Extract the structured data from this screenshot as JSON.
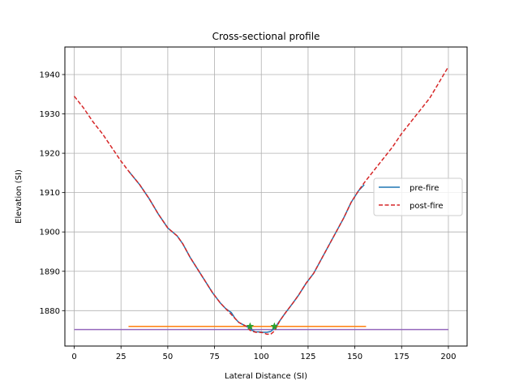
{
  "chart_data": {
    "type": "line",
    "title": "Cross-sectional profile",
    "xlabel": "Lateral Distance (SI)",
    "ylabel": "Elevation (SI)",
    "xlim": [
      -5,
      210
    ],
    "ylim": [
      1871,
      1947
    ],
    "xticks": [
      0,
      25,
      50,
      75,
      100,
      125,
      150,
      175,
      200
    ],
    "yticks": [
      1880,
      1890,
      1900,
      1910,
      1920,
      1930,
      1940
    ],
    "grid": true,
    "legend": {
      "placement": "center-right",
      "entries": [
        "pre-fire",
        "post-fire"
      ]
    },
    "series": [
      {
        "name": "pre-fire",
        "color": "#1f77b4",
        "style": "solid",
        "x": [
          29,
          35,
          40,
          45,
          50,
          55,
          58,
          62,
          66,
          70,
          74,
          78,
          81,
          84,
          86,
          88,
          90,
          92,
          94,
          95,
          97,
          99,
          101,
          103,
          105,
          107,
          110,
          113,
          117,
          120,
          124,
          128,
          132,
          136,
          140,
          144,
          148,
          152,
          155
        ],
        "y": [
          1915.5,
          1912.0,
          1908.5,
          1904.5,
          1901.0,
          1899.0,
          1897.0,
          1893.5,
          1890.5,
          1887.5,
          1884.5,
          1882.0,
          1880.5,
          1879.5,
          1878.0,
          1877.0,
          1876.5,
          1876.0,
          1875.5,
          1875.0,
          1874.6,
          1874.6,
          1874.5,
          1874.5,
          1874.7,
          1875.5,
          1877.5,
          1879.5,
          1882.0,
          1884.0,
          1887.0,
          1889.5,
          1893.0,
          1896.5,
          1900.0,
          1903.5,
          1907.5,
          1910.5,
          1912.0
        ]
      },
      {
        "name": "post-fire",
        "color": "#d62728",
        "style": "dashed",
        "x": [
          0,
          5,
          10,
          15,
          20,
          25,
          29,
          35,
          40,
          45,
          50,
          55,
          58,
          62,
          66,
          70,
          74,
          78,
          81,
          84,
          86,
          88,
          90,
          92,
          94,
          95,
          97,
          99,
          101,
          103,
          105,
          107,
          110,
          113,
          117,
          120,
          124,
          128,
          132,
          136,
          140,
          144,
          148,
          152,
          155,
          160,
          165,
          170,
          175,
          180,
          185,
          190,
          195,
          200
        ],
        "y": [
          1934.5,
          1931.5,
          1928.0,
          1925.0,
          1921.5,
          1918.0,
          1915.5,
          1912.0,
          1908.5,
          1904.5,
          1901.0,
          1899.0,
          1897.0,
          1893.5,
          1890.5,
          1887.5,
          1884.5,
          1882.0,
          1880.5,
          1879.0,
          1878.0,
          1877.0,
          1876.5,
          1876.0,
          1875.0,
          1874.8,
          1874.5,
          1874.5,
          1874.4,
          1874.0,
          1874.0,
          1874.8,
          1877.5,
          1879.5,
          1882.0,
          1884.0,
          1887.0,
          1889.5,
          1893.0,
          1896.5,
          1900.0,
          1903.5,
          1907.5,
          1910.5,
          1912.5,
          1915.5,
          1918.5,
          1921.5,
          1925.0,
          1928.0,
          1931.0,
          1934.0,
          1938.0,
          1942.0
        ]
      },
      {
        "color": "#ff7f0e",
        "style": "solid",
        "x": [
          29,
          156
        ],
        "y": [
          1876.0,
          1876.0
        ]
      },
      {
        "color": "#9467bd",
        "style": "solid",
        "x": [
          0,
          200
        ],
        "y": [
          1875.2,
          1875.2
        ]
      }
    ],
    "markers": {
      "color": "#2ca02c",
      "shape": "star",
      "x": [
        94,
        107
      ],
      "y": [
        1876.0,
        1876.0
      ]
    }
  }
}
